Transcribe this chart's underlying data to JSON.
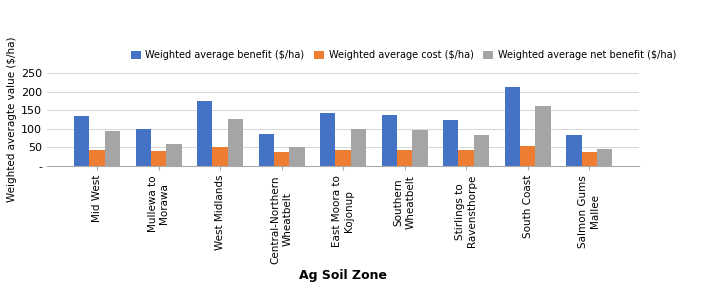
{
  "categories": [
    "Mid West",
    "Mullewa to\nMorawa",
    "West Midlands",
    "Central-Northern\nWheatbelt",
    "East Moora to\nKojonup",
    "Southern\nWheatbelt",
    "Stirlings to\nRavensthorpe",
    "South Coast",
    "Salmon Gums\nMallee"
  ],
  "benefit": [
    134,
    99,
    174,
    86,
    144,
    138,
    123,
    212,
    83
  ],
  "cost": [
    44,
    41,
    51,
    38,
    43,
    44,
    43,
    53,
    39
  ],
  "net_benefit": [
    93,
    59,
    126,
    51,
    101,
    97,
    84,
    161,
    47
  ],
  "colors": {
    "benefit": "#4472C4",
    "cost": "#ED7D31",
    "net_benefit": "#A5A5A5"
  },
  "ylabel": "Weighted averagte value ($/ha)",
  "xlabel": "Ag Soil Zone",
  "ylim": [
    0,
    250
  ],
  "yticks": [
    0,
    50,
    100,
    150,
    200,
    250
  ],
  "legend_labels": [
    "Weighted average benefit ($/ha)",
    "Weighted average cost ($/ha)",
    "Weighted average net benefit ($/ha)"
  ],
  "bar_width": 0.25,
  "background_color": "#ffffff"
}
